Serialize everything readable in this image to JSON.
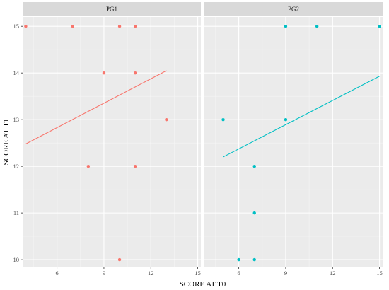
{
  "chart_data": {
    "type": "scatter",
    "title": "",
    "xlabel": "SCORE AT T0",
    "ylabel": "SCORE AT T1",
    "xlim": [
      3.8,
      15.2
    ],
    "ylim": [
      9.85,
      15.2
    ],
    "x_ticks": [
      6,
      9,
      12,
      15
    ],
    "y_ticks": [
      10,
      11,
      12,
      13,
      14,
      15
    ],
    "grid": true,
    "legend": "none",
    "panels": [
      {
        "name": "PG1",
        "color": "#F8766D",
        "points": [
          {
            "x": 4,
            "y": 15
          },
          {
            "x": 7,
            "y": 15
          },
          {
            "x": 10,
            "y": 15
          },
          {
            "x": 11,
            "y": 15
          },
          {
            "x": 9,
            "y": 14
          },
          {
            "x": 11,
            "y": 14
          },
          {
            "x": 13,
            "y": 13
          },
          {
            "x": 8,
            "y": 12
          },
          {
            "x": 11,
            "y": 12
          },
          {
            "x": 10,
            "y": 10
          }
        ],
        "fit": {
          "x": [
            4,
            13
          ],
          "y": [
            12.48,
            14.05
          ]
        }
      },
      {
        "name": "PG2",
        "color": "#00BFC4",
        "points": [
          {
            "x": 9,
            "y": 15
          },
          {
            "x": 11,
            "y": 15
          },
          {
            "x": 15,
            "y": 15
          },
          {
            "x": 5,
            "y": 13
          },
          {
            "x": 9,
            "y": 13
          },
          {
            "x": 7,
            "y": 12
          },
          {
            "x": 7,
            "y": 11
          },
          {
            "x": 6,
            "y": 10
          },
          {
            "x": 7,
            "y": 10
          }
        ],
        "fit": {
          "x": [
            5,
            15
          ],
          "y": [
            12.2,
            13.93
          ]
        }
      }
    ]
  }
}
